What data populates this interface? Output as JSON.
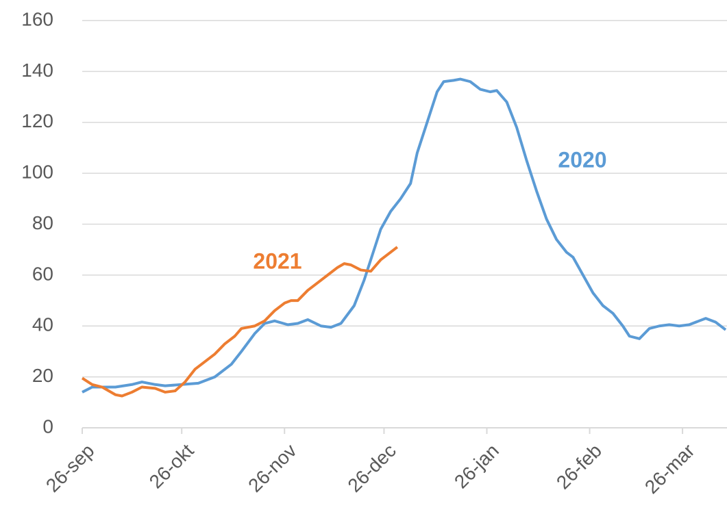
{
  "chart_data": {
    "type": "line",
    "xlim": [
      0,
      194
    ],
    "xticks": [
      {
        "value": 0,
        "label": "26-sep"
      },
      {
        "value": 30,
        "label": "26-okt"
      },
      {
        "value": 61,
        "label": "26-nov"
      },
      {
        "value": 91,
        "label": "26-dec"
      },
      {
        "value": 122,
        "label": "26-jan"
      },
      {
        "value": 153,
        "label": "26-feb"
      },
      {
        "value": 181,
        "label": "26-mar"
      }
    ],
    "ylim": [
      0,
      160
    ],
    "yticks": [
      0,
      20,
      40,
      60,
      80,
      100,
      120,
      140,
      160
    ],
    "grid": true,
    "series": [
      {
        "name": "2020",
        "color": "#5b9bd5",
        "x": [
          0,
          3,
          10,
          15,
          18,
          22,
          25,
          30,
          35,
          40,
          45,
          48,
          52,
          55,
          58,
          62,
          65,
          68,
          72,
          75,
          78,
          82,
          85,
          88,
          90,
          93,
          96,
          99,
          101,
          104,
          107,
          109,
          112,
          114,
          117,
          120,
          123,
          125,
          128,
          131,
          134,
          137,
          140,
          143,
          146,
          148,
          151,
          154,
          157,
          160,
          163,
          165,
          168,
          171,
          174,
          177,
          180,
          183,
          186,
          188,
          191,
          194
        ],
        "values": [
          14,
          16,
          16,
          17,
          18,
          17,
          16.5,
          17,
          17.5,
          20,
          25,
          30,
          37,
          41,
          42,
          40.5,
          41,
          42.5,
          40,
          39.5,
          41,
          48,
          58,
          70,
          78,
          85,
          90,
          96,
          108,
          120,
          132,
          136,
          136.5,
          137,
          136,
          133,
          132,
          132.5,
          128,
          118,
          105,
          93,
          82,
          74,
          69,
          67,
          60,
          53,
          48,
          45,
          40,
          36,
          35,
          39,
          40,
          40.5,
          40,
          40.5,
          42,
          43,
          41.5,
          38.5
        ]
      },
      {
        "name": "2021",
        "color": "#ed7d31",
        "x": [
          0,
          3,
          6,
          10,
          12,
          15,
          18,
          22,
          25,
          28,
          31,
          34,
          37,
          40,
          43,
          46,
          48,
          52,
          55,
          58,
          61,
          63,
          65,
          68,
          71,
          74,
          77,
          79,
          81,
          84,
          87,
          90,
          93,
          95
        ],
        "values": [
          19.5,
          17,
          16,
          13,
          12.5,
          14,
          16,
          15.5,
          14,
          14.5,
          18,
          23,
          26,
          29,
          33,
          36,
          39,
          40,
          42,
          46,
          49,
          50,
          50,
          54,
          57,
          60,
          63,
          64.5,
          64,
          62,
          61.5,
          66,
          69,
          71
        ]
      }
    ]
  }
}
